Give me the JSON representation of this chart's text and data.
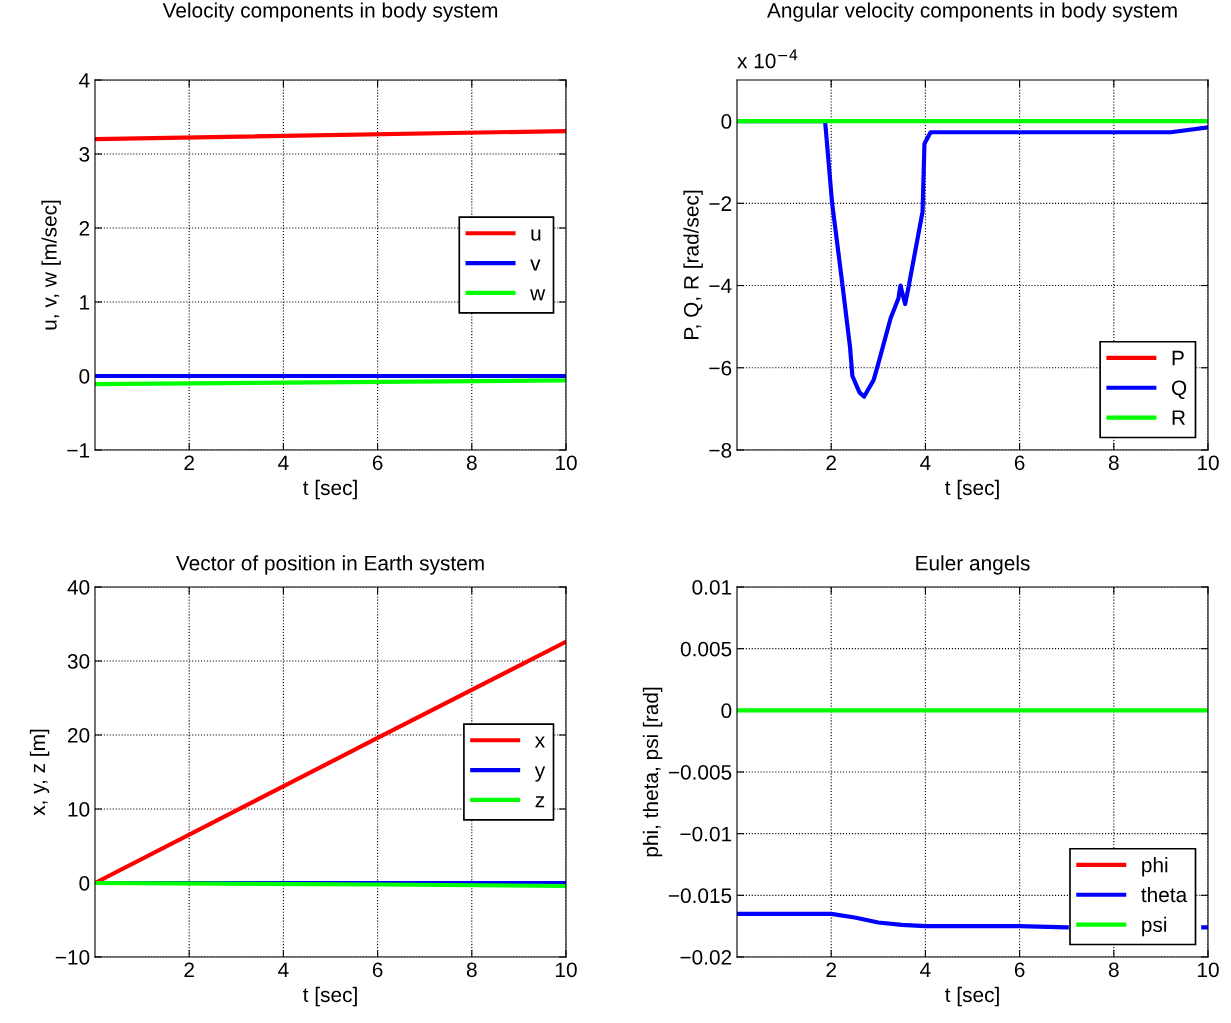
{
  "chart_data": [
    {
      "type": "line",
      "title": "Velocity components in body system",
      "xlabel": "t [sec]",
      "ylabel": "u, v, w [m/sec]",
      "xlim": [
        0,
        10
      ],
      "xticks": [
        2,
        4,
        6,
        8,
        10
      ],
      "ylim": [
        -1,
        4
      ],
      "yticks": [
        -1,
        0,
        1,
        2,
        3,
        4
      ],
      "grid": true,
      "legend": "right",
      "line_style": "solid",
      "x": [
        0,
        10
      ],
      "series": [
        {
          "name": "u",
          "color": "#ff0000",
          "values": [
            3.2,
            3.31
          ]
        },
        {
          "name": "v",
          "color": "#0000ff",
          "values": [
            0,
            0
          ]
        },
        {
          "name": "w",
          "color": "#00ff00",
          "values": [
            -0.11,
            -0.06
          ]
        }
      ]
    },
    {
      "type": "line",
      "title": "Angular velocity components in body system",
      "xlabel": "t [sec]",
      "ylabel": "P, Q, R [rad/sec]",
      "annotations": [
        "x 10$^{−4}$"
      ],
      "xlim": [
        0,
        10
      ],
      "xticks": [
        2,
        4,
        6,
        8,
        10
      ],
      "ylim": [
        -8,
        1
      ],
      "yticks": [
        -8,
        -6,
        -4,
        -2,
        0
      ],
      "grid": true,
      "legend": "bottom right",
      "line_style": "solid",
      "series": [
        {
          "name": "P",
          "color": "#ff0000"
        },
        {
          "name": "Q",
          "color": "#0000ff",
          "x": [
            0,
            1.87,
            2.02,
            2.23,
            2.4,
            2.45,
            2.6,
            2.7,
            2.8,
            2.9,
            3.0,
            3.26,
            3.43,
            3.47,
            3.57,
            3.64,
            3.94,
            3.98,
            4.11,
            9.21,
            10
          ],
          "values": [
            0,
            0,
            -2.0,
            -3.9,
            -5.5,
            -6.2,
            -6.6,
            -6.7,
            -6.5,
            -6.3,
            -5.9,
            -4.8,
            -4.3,
            -4.0,
            -4.45,
            -4.05,
            -2.2,
            -0.55,
            -0.27,
            -0.27,
            -0.15
          ]
        },
        {
          "name": "R",
          "color": "#00ff00",
          "x": [
            0,
            10
          ],
          "values": [
            0,
            0
          ]
        }
      ]
    },
    {
      "type": "line",
      "title": "Vector of position in Earth system",
      "xlabel": "t [sec]",
      "ylabel": "x, y, z [m]",
      "xlim": [
        0,
        10
      ],
      "xticks": [
        2,
        4,
        6,
        8,
        10
      ],
      "ylim": [
        -10,
        40
      ],
      "yticks": [
        -10,
        0,
        10,
        20,
        30,
        40
      ],
      "grid": true,
      "legend": "right",
      "line_style": "solid",
      "x": [
        0,
        6,
        10
      ],
      "series": [
        {
          "name": "x",
          "color": "#ff0000",
          "values": [
            0,
            19.6,
            32.6
          ]
        },
        {
          "name": "y",
          "color": "#0000ff",
          "values": [
            0,
            0,
            0
          ]
        },
        {
          "name": "z",
          "color": "#00ff00",
          "values": [
            0,
            -0.2,
            -0.4
          ]
        }
      ]
    },
    {
      "type": "line",
      "title": "Euler angels",
      "xlabel": "t [sec]",
      "ylabel": "phi, theta, psi [rad]",
      "xlim": [
        0,
        10
      ],
      "xticks": [
        2,
        4,
        6,
        8,
        10
      ],
      "ylim": [
        -0.02,
        0.01
      ],
      "yticks": [
        -0.02,
        -0.015,
        -0.01,
        -0.005,
        0,
        0.005,
        0.01
      ],
      "grid": true,
      "legend": "bottom right",
      "line_style": "solid",
      "series": [
        {
          "name": "phi",
          "color": "#ff0000"
        },
        {
          "name": "theta",
          "color": "#0000ff",
          "x": [
            0,
            2,
            2.5,
            3,
            3.5,
            4,
            6,
            7,
            8,
            9.9,
            10
          ],
          "values": [
            -0.0165,
            -0.0165,
            -0.0168,
            -0.0172,
            -0.0174,
            -0.0175,
            -0.0175,
            -0.0176,
            null,
            -0.0176,
            -0.0176
          ]
        },
        {
          "name": "psi",
          "color": "#00ff00",
          "x": [
            0,
            10
          ],
          "values": [
            0,
            0
          ]
        }
      ]
    }
  ]
}
